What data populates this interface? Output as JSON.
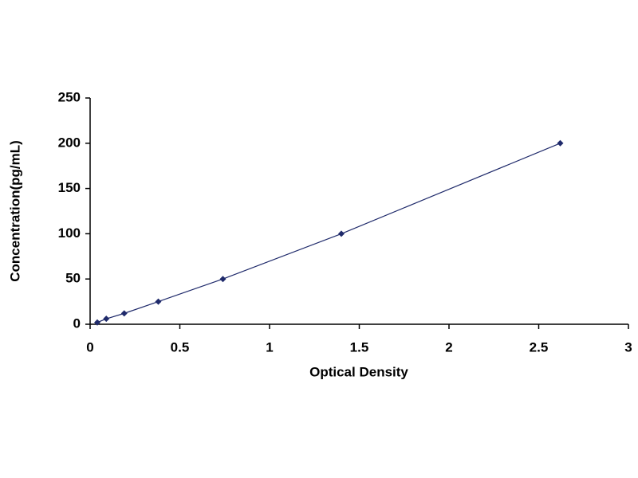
{
  "chart_data": {
    "type": "scatter",
    "x_label": "Optical Density",
    "y_label": "Concentration(pg/mL)",
    "x": [
      0.04,
      0.09,
      0.19,
      0.38,
      0.74,
      1.4,
      2.62
    ],
    "values": [
      2,
      6,
      12,
      25,
      50,
      100,
      200
    ],
    "color": "#1f2a6b",
    "xlim": [
      0,
      3
    ],
    "xticks": [
      0,
      0.5,
      1,
      1.5,
      2,
      2.5,
      3
    ],
    "ylim": [
      0,
      250
    ],
    "yticks": [
      0,
      50,
      100,
      150,
      200,
      250
    ]
  }
}
